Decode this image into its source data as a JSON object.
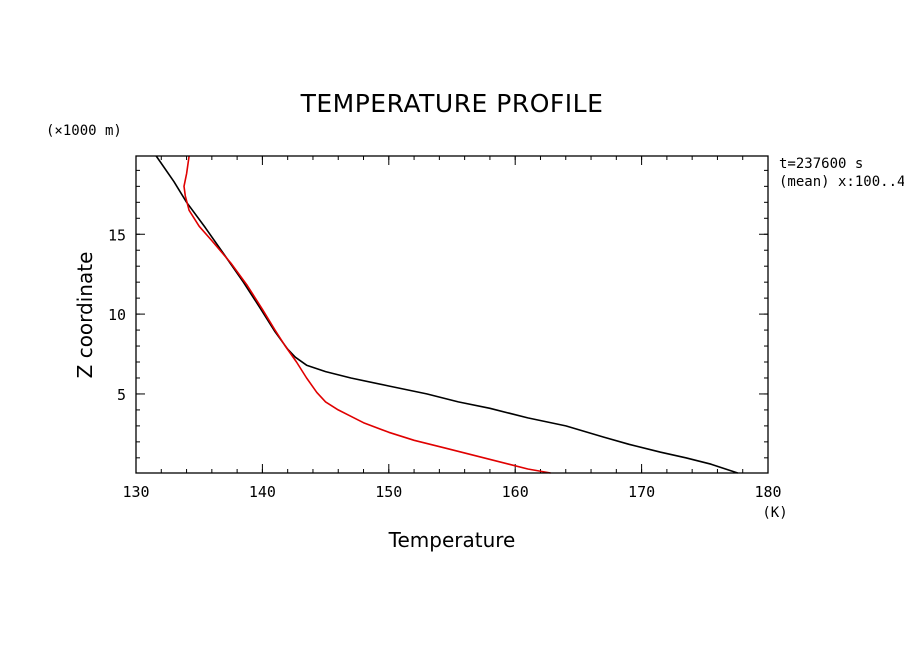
{
  "chart_data": {
    "type": "line",
    "title": "TEMPERATURE  PROFILE",
    "xlabel": "Temperature",
    "ylabel": "Z coordinate",
    "x_unit": "(K)",
    "y_unit": "(×1000 m)",
    "xlim": [
      130,
      180
    ],
    "ylim": [
      0.05,
      19.9
    ],
    "x_ticks": [
      130,
      140,
      150,
      160,
      170,
      180
    ],
    "y_ticks": [
      5,
      10,
      15
    ],
    "x_minor_step": 2,
    "y_minor_step": 1,
    "grid": false,
    "annotations": [
      "t=237600 s",
      "(mean) x:100..4"
    ],
    "series": [
      {
        "color": "#000000",
        "points": [
          [
            177.6,
            0.05
          ],
          [
            175.5,
            0.6
          ],
          [
            173.5,
            1.0
          ],
          [
            171.5,
            1.35
          ],
          [
            169.0,
            1.85
          ],
          [
            167.0,
            2.3
          ],
          [
            164.0,
            3.0
          ],
          [
            161.0,
            3.5
          ],
          [
            158.0,
            4.1
          ],
          [
            155.5,
            4.5
          ],
          [
            153.0,
            5.0
          ],
          [
            150.0,
            5.5
          ],
          [
            147.0,
            6.0
          ],
          [
            145.0,
            6.4
          ],
          [
            143.5,
            6.8
          ],
          [
            142.6,
            7.3
          ],
          [
            142.0,
            7.8
          ],
          [
            141.0,
            8.9
          ],
          [
            139.8,
            10.4
          ],
          [
            138.5,
            12.0
          ],
          [
            137.0,
            13.7
          ],
          [
            135.5,
            15.4
          ],
          [
            134.0,
            17.0
          ],
          [
            133.0,
            18.3
          ],
          [
            131.6,
            19.9
          ]
        ]
      },
      {
        "color": "#e00000",
        "points": [
          [
            162.8,
            0.05
          ],
          [
            161.0,
            0.3
          ],
          [
            159.5,
            0.6
          ],
          [
            157.0,
            1.1
          ],
          [
            154.5,
            1.6
          ],
          [
            152.0,
            2.1
          ],
          [
            150.0,
            2.6
          ],
          [
            148.0,
            3.2
          ],
          [
            147.0,
            3.6
          ],
          [
            146.0,
            4.0
          ],
          [
            145.0,
            4.5
          ],
          [
            144.3,
            5.1
          ],
          [
            143.5,
            6.0
          ],
          [
            142.7,
            7.0
          ],
          [
            141.8,
            8.0
          ],
          [
            141.0,
            9.0
          ],
          [
            140.0,
            10.3
          ],
          [
            138.8,
            11.8
          ],
          [
            137.5,
            13.2
          ],
          [
            136.0,
            14.6
          ],
          [
            135.0,
            15.5
          ],
          [
            134.2,
            16.5
          ],
          [
            133.9,
            17.4
          ],
          [
            133.8,
            18.0
          ],
          [
            134.0,
            18.8
          ],
          [
            134.2,
            19.9
          ]
        ]
      }
    ]
  }
}
